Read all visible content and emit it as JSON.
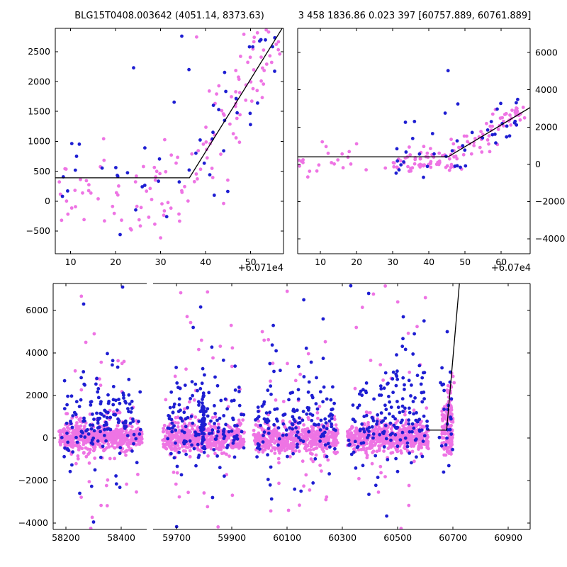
{
  "figure": {
    "background": "#ffffff",
    "text_color": "#000000",
    "line_color": "#000000",
    "series_colors": {
      "violet": "#ee74e4",
      "blue": "#1e1ed2"
    },
    "marker_radius": 2.4
  },
  "chart_data": [
    {
      "id": "top-left",
      "type": "scatter",
      "title": "BLG15T0408.003642 (4051.14, 8373.63)",
      "x_offset_label": "+6.071e4",
      "xlim": [
        6.6,
        57.3
      ],
      "ylim": [
        -880,
        2890
      ],
      "x_ticks": [
        10,
        20,
        30,
        40,
        50
      ],
      "y_ticks": [
        -500,
        0,
        500,
        1000,
        1500,
        2000,
        2500
      ],
      "grid": false,
      "legend": "none",
      "model_line": [
        [
          6.6,
          390
        ],
        [
          36.4,
          390
        ],
        [
          57.0,
          2890
        ]
      ],
      "series": [
        {
          "name": "violet",
          "color": "violet",
          "clusters": [
            {
              "n": 48,
              "x": [
                7,
                36
              ],
              "y": 240,
              "s": 330
            },
            {
              "n": 10,
              "x": [
                20,
                36
              ],
              "y": -350,
              "s": 220
            },
            {
              "n": 26,
              "x": [
                36,
                45
              ],
              "y": "line",
              "s": 390
            },
            {
              "n": 46,
              "x": [
                45,
                56.8
              ],
              "y": "line",
              "s": 430
            }
          ],
          "points": [
            [
              9,
              535
            ],
            [
              8,
              -320
            ],
            [
              13,
              -310
            ],
            [
              23.5,
              -480
            ],
            [
              30,
              -615
            ],
            [
              38,
              2745
            ],
            [
              48.5,
              2790
            ],
            [
              51.5,
              2815
            ],
            [
              44,
              -40
            ],
            [
              50.8,
              2740
            ]
          ]
        },
        {
          "name": "blue",
          "color": "blue",
          "clusters": [
            {
              "n": 18,
              "x": [
                8,
                36
              ],
              "y": 280,
              "s": 420
            },
            {
              "n": 30,
              "x": [
                36,
                56
              ],
              "y": "line",
              "s": 520
            }
          ],
          "points": [
            [
              24,
              2230
            ],
            [
              36.3,
              2200
            ],
            [
              34.7,
              2760
            ],
            [
              33,
              1655
            ],
            [
              21,
              -560
            ],
            [
              26.5,
              890
            ],
            [
              17,
              552
            ],
            [
              52.3,
              2700
            ]
          ]
        }
      ]
    },
    {
      "id": "top-right",
      "type": "scatter",
      "title": "3 458 1836.86 0.023 397 [60757.889, 60761.889]",
      "x_offset_label": "+6.07e4",
      "xlim": [
        3.7,
        68
      ],
      "ylim": [
        -4800,
        7300
      ],
      "x_ticks": [
        10,
        20,
        30,
        40,
        50,
        60
      ],
      "y_ticks": [
        -4000,
        -2000,
        0,
        2000,
        4000,
        6000
      ],
      "grid": false,
      "legend": "none",
      "model_line": [
        [
          3.7,
          400
        ],
        [
          45.3,
          400
        ],
        [
          68,
          3050
        ]
      ],
      "series": [
        {
          "name": "violet",
          "color": "violet",
          "clusters": [
            {
              "n": 20,
              "x": [
                4,
                30
              ],
              "y": 120,
              "s": 360
            },
            {
              "n": 52,
              "x": [
                30,
                45.3
              ],
              "y": 220,
              "s": 330
            },
            {
              "n": 70,
              "x": [
                45.3,
                66.5
              ],
              "y": "line",
              "s": 420
            }
          ],
          "points": [
            [
              6.5,
              -680
            ],
            [
              10.5,
              1210
            ],
            [
              20,
              1100
            ],
            [
              63,
              2900
            ]
          ]
        },
        {
          "name": "blue",
          "color": "blue",
          "clusters": [
            {
              "n": 12,
              "x": [
                28,
                45.3
              ],
              "y": 350,
              "s": 520
            },
            {
              "n": 26,
              "x": [
                45.3,
                66
              ],
              "y": "line",
              "s": 600
            }
          ],
          "points": [
            [
              45.3,
              5030
            ],
            [
              48,
              3240
            ],
            [
              36,
              2300
            ],
            [
              44.5,
              2750
            ],
            [
              41,
              1650
            ],
            [
              33.5,
              2260
            ],
            [
              38.5,
              -700
            ]
          ]
        }
      ]
    },
    {
      "id": "bottom-left",
      "type": "scatter",
      "title": "",
      "x_offset_label": "",
      "xlim": [
        58154,
        58492
      ],
      "ylim": [
        -4300,
        7267
      ],
      "x_ticks": [
        58200,
        58400
      ],
      "y_ticks": [
        -4000,
        -2000,
        0,
        2000,
        4000,
        6000
      ],
      "grid": false,
      "legend": "none",
      "model_line": [],
      "series": [
        {
          "name": "violet",
          "color": "violet",
          "clusters": [
            {
              "n": 470,
              "x": [
                58175,
                58475
              ],
              "y": 20,
              "s": 310
            },
            {
              "n": 70,
              "x": [
                58185,
                58465
              ],
              "y": 150,
              "s": 680
            },
            {
              "n": 11,
              "x": [
                58200,
                58450
              ],
              "y": 3400,
              "s": 1250
            },
            {
              "n": 7,
              "x": [
                58210,
                58460
              ],
              "y": -2400,
              "s": 750
            }
          ],
          "points": [
            [
              58256,
              6670
            ],
            [
              58272,
              4500
            ],
            [
              58327,
              -3170
            ],
            [
              58295,
              -3730
            ],
            [
              58290,
              -4250
            ],
            [
              58410,
              3600
            ]
          ]
        },
        {
          "name": "blue",
          "color": "blue",
          "clusters": [
            {
              "n": 95,
              "x": [
                58180,
                58470
              ],
              "y": 420,
              "s": 620
            },
            {
              "n": 34,
              "x": [
                58200,
                58470
              ],
              "y": 1650,
              "s": 520
            },
            {
              "n": 12,
              "x": [
                58190,
                58460
              ],
              "y": 3000,
              "s": 900
            },
            {
              "n": 8,
              "x": [
                58200,
                58450
              ],
              "y": -1700,
              "s": 650
            }
          ],
          "points": [
            [
              58405,
              7100
            ],
            [
              58264,
              6300
            ],
            [
              58250,
              -2600
            ],
            [
              58350,
              3970
            ],
            [
              58300,
              -3950
            ]
          ]
        }
      ]
    },
    {
      "id": "bottom-right",
      "type": "scatter",
      "title": "",
      "x_offset_label": "",
      "xlim": [
        59615,
        60979
      ],
      "ylim": [
        -4300,
        7267
      ],
      "x_ticks": [
        59700,
        59900,
        60100,
        60300,
        60500,
        60700,
        60900
      ],
      "y_ticks": [
        -4000,
        -2000,
        0,
        2000,
        4000,
        6000
      ],
      "grid": false,
      "legend": "none",
      "model_line": [
        [
          60608,
          370
        ],
        [
          60677,
          370
        ],
        [
          60723,
          7267
        ]
      ],
      "series": [
        {
          "name": "violet",
          "color": "violet",
          "clusters": [
            {
              "n": 470,
              "x": [
                59650,
                59945
              ],
              "y": 20,
              "s": 310
            },
            {
              "n": 70,
              "x": [
                59660,
                59940
              ],
              "y": 150,
              "s": 680
            },
            {
              "n": 11,
              "x": [
                59680,
                59930
              ],
              "y": 3400,
              "s": 1250
            },
            {
              "n": 7,
              "x": [
                59690,
                59920
              ],
              "y": -2400,
              "s": 750
            },
            {
              "n": 470,
              "x": [
                59978,
                60283
              ],
              "y": 20,
              "s": 310
            },
            {
              "n": 70,
              "x": [
                59990,
                60275
              ],
              "y": 150,
              "s": 680
            },
            {
              "n": 11,
              "x": [
                60000,
                60270
              ],
              "y": 3400,
              "s": 1250
            },
            {
              "n": 7,
              "x": [
                60010,
                60260
              ],
              "y": -2400,
              "s": 750
            },
            {
              "n": 470,
              "x": [
                60318,
                60612
              ],
              "y": 20,
              "s": 310
            },
            {
              "n": 70,
              "x": [
                60330,
                60605
              ],
              "y": 150,
              "s": 680
            },
            {
              "n": 11,
              "x": [
                60340,
                60600
              ],
              "y": 3400,
              "s": 1250
            },
            {
              "n": 7,
              "x": [
                60350,
                60590
              ],
              "y": -2400,
              "s": 750
            },
            {
              "n": 95,
              "x": [
                60658,
                60700
              ],
              "y": 350,
              "s": 550
            },
            {
              "n": 55,
              "x": [
                60678,
                60696
              ],
              "y": 1100,
              "s": 750
            }
          ],
          "points": [
            [
              59715,
              6830
            ],
            [
              59812,
              6870
            ],
            [
              59751,
              5430
            ],
            [
              59812,
              -3230
            ],
            [
              59850,
              -4180
            ],
            [
              59790,
              4600
            ],
            [
              60100,
              6900
            ],
            [
              60105,
              -3400
            ],
            [
              60010,
              5000
            ],
            [
              60240,
              -2900
            ],
            [
              60455,
              7150
            ],
            [
              60540,
              -3170
            ],
            [
              60500,
              6400
            ],
            [
              60350,
              5200
            ],
            [
              60412,
              6770
            ],
            [
              60700,
              2900
            ],
            [
              60704,
              2600
            ],
            [
              60695,
              3050
            ],
            [
              60668,
              -800
            ]
          ]
        },
        {
          "name": "blue",
          "color": "blue",
          "clusters": [
            {
              "n": 95,
              "x": [
                59655,
                59945
              ],
              "y": 420,
              "s": 620
            },
            {
              "n": 34,
              "x": [
                59670,
                59940
              ],
              "y": 1650,
              "s": 520
            },
            {
              "n": 12,
              "x": [
                59680,
                59930
              ],
              "y": 3000,
              "s": 900
            },
            {
              "n": 8,
              "x": [
                59690,
                59930
              ],
              "y": -1700,
              "s": 650
            },
            {
              "n": 55,
              "x": [
                59791,
                59801
              ],
              "y": 800,
              "s": 850
            },
            {
              "n": 95,
              "x": [
                59980,
                60280
              ],
              "y": 420,
              "s": 620
            },
            {
              "n": 34,
              "x": [
                59995,
                60270
              ],
              "y": 1650,
              "s": 520
            },
            {
              "n": 12,
              "x": [
                60000,
                60265
              ],
              "y": 3000,
              "s": 900
            },
            {
              "n": 8,
              "x": [
                60010,
                60260
              ],
              "y": -1700,
              "s": 650
            },
            {
              "n": 95,
              "x": [
                60320,
                60610
              ],
              "y": 420,
              "s": 620
            },
            {
              "n": 45,
              "x": [
                60335,
                60605
              ],
              "y": 1800,
              "s": 620
            },
            {
              "n": 18,
              "x": [
                60480,
                60600
              ],
              "y": 3600,
              "s": 1000
            },
            {
              "n": 8,
              "x": [
                60340,
                60590
              ],
              "y": -1700,
              "s": 650
            },
            {
              "n": 20,
              "x": [
                60650,
                60700
              ],
              "y": 900,
              "s": 900
            }
          ],
          "points": [
            [
              59787,
              6160
            ],
            [
              59700,
              -4170
            ],
            [
              59830,
              -2800
            ],
            [
              59760,
              5200
            ],
            [
              60160,
              6500
            ],
            [
              60230,
              5600
            ],
            [
              60150,
              -2500
            ],
            [
              60060,
              4100
            ],
            [
              60395,
              6800
            ],
            [
              60460,
              -3670
            ],
            [
              60520,
              5700
            ],
            [
              60560,
              4900
            ],
            [
              60330,
              7160
            ],
            [
              60679,
              5000
            ],
            [
              60655,
              2600
            ],
            [
              60690,
              3100
            ],
            [
              60685,
              -1300
            ],
            [
              60660,
              3300
            ]
          ]
        }
      ]
    }
  ]
}
